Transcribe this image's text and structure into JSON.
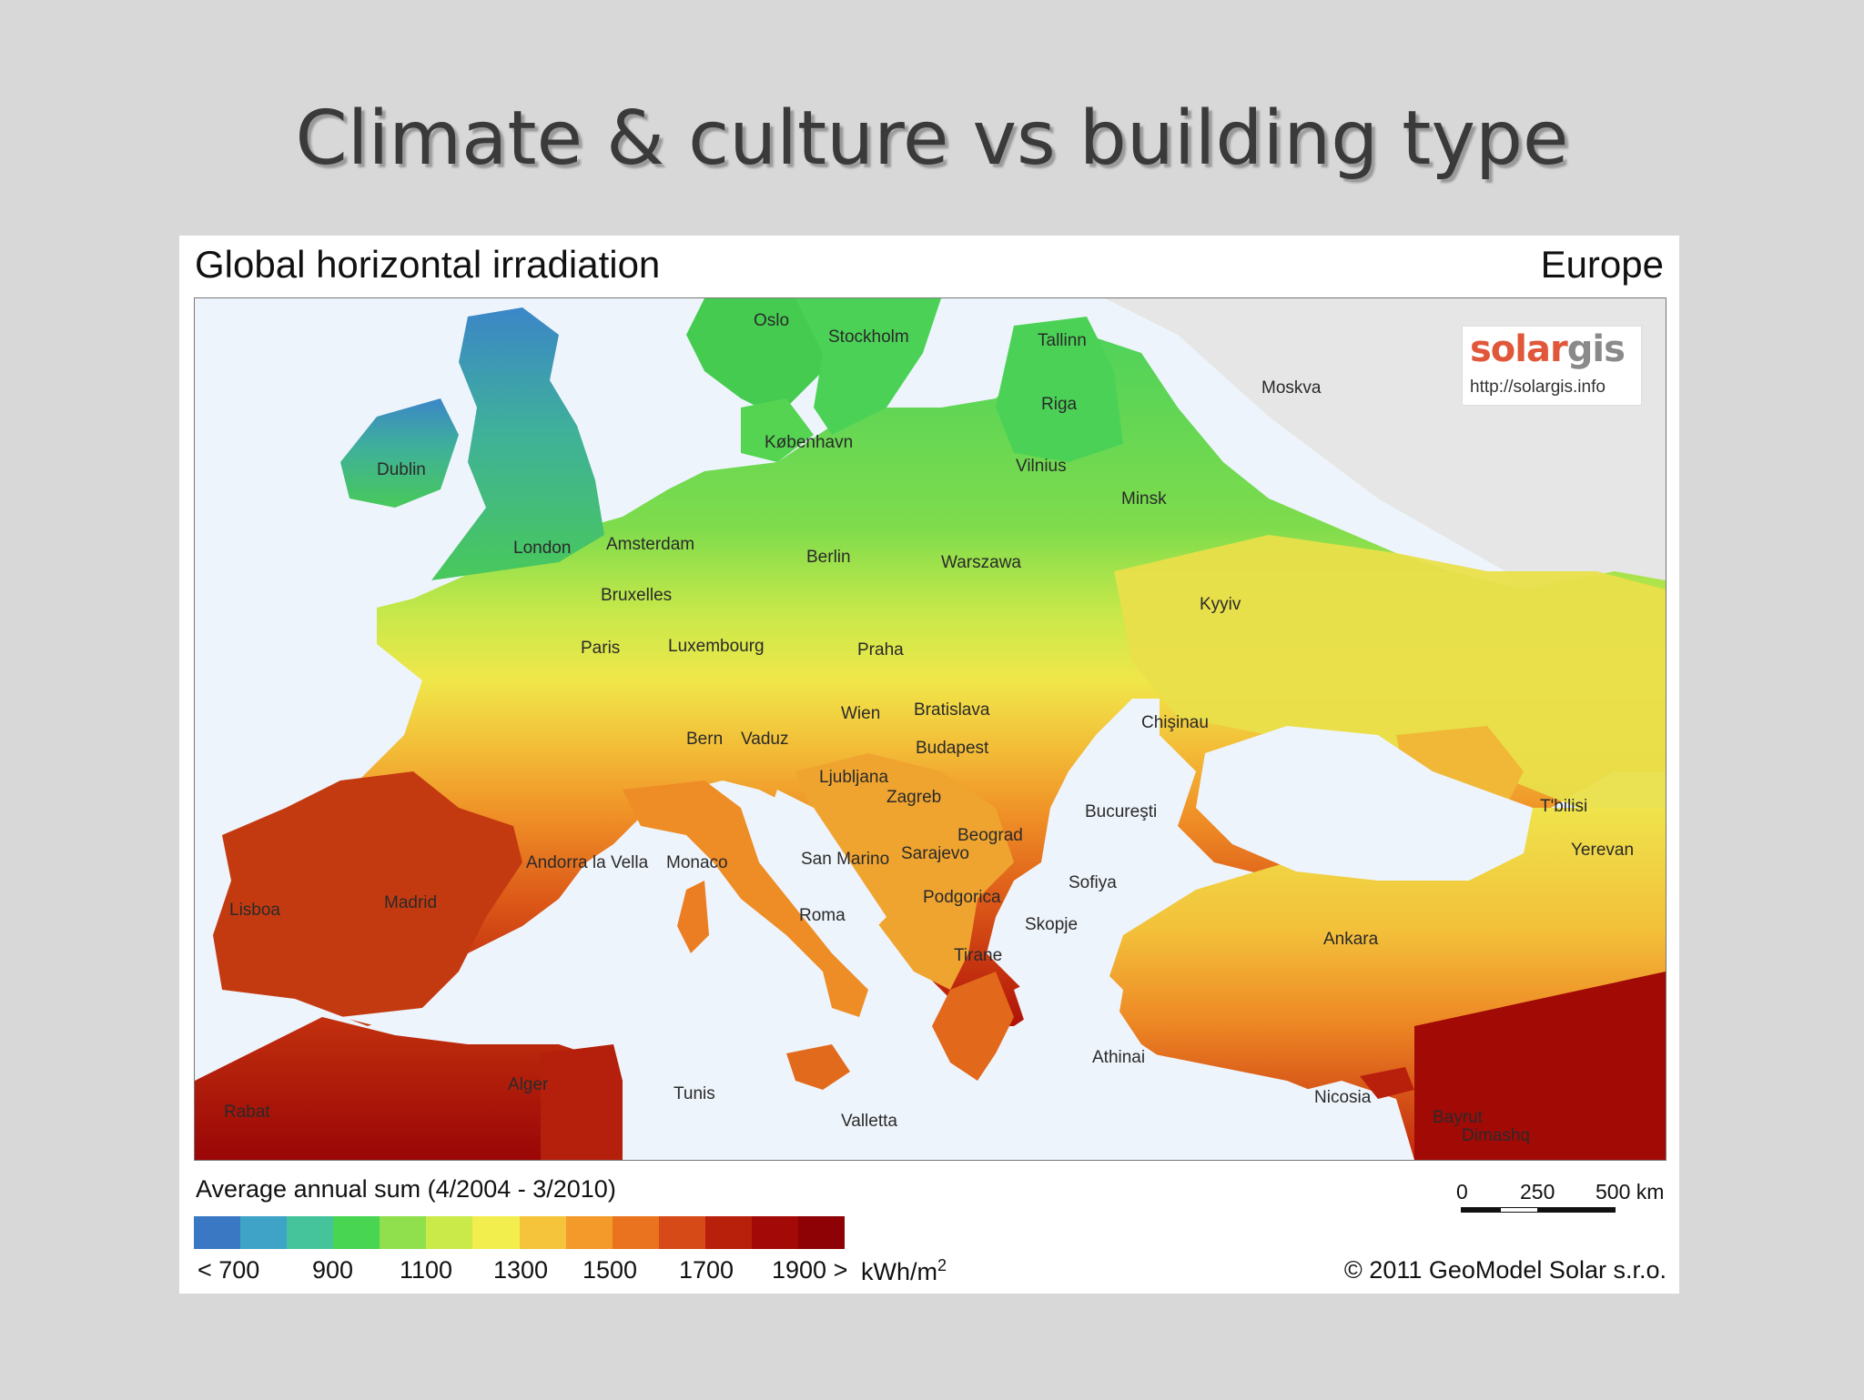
{
  "slide": {
    "title": "Climate & culture vs building type"
  },
  "map": {
    "title": "Global horizontal irradiation",
    "region": "Europe",
    "logo": {
      "part1": "solar",
      "part2": "gis",
      "url": "http://solargis.info"
    },
    "cities": [
      "Oslo",
      "Stockholm",
      "Tallinn",
      "Moskva",
      "Riga",
      "København",
      "Vilnius",
      "Dublin",
      "Minsk",
      "London",
      "Amsterdam",
      "Berlin",
      "Warszawa",
      "Bruxelles",
      "Kyyiv",
      "Paris",
      "Luxembourg",
      "Praha",
      "Wien",
      "Bratislava",
      "Chişinau",
      "Bern",
      "Vaduz",
      "Budapest",
      "Ljubljana",
      "Zagreb",
      "T'bilisi",
      "Bucureşti",
      "Andorra la Vella",
      "Monaco",
      "San Marino",
      "Sarajevo",
      "Beograd",
      "Yerevan",
      "Lisboa",
      "Madrid",
      "Sofiya",
      "Podgorica",
      "Roma",
      "Skopje",
      "Ankara",
      "Tirane",
      "Athinai",
      "Alger",
      "Tunis",
      "Nicosia",
      "Rabat",
      "Valletta",
      "Bayrut",
      "Dimashq"
    ]
  },
  "legend": {
    "title": "Average annual sum (4/2004 - 3/2010)",
    "colors": [
      "#3b78c4",
      "#3fa3c8",
      "#45c39a",
      "#48d552",
      "#8fe04c",
      "#c9ea48",
      "#f2ee4e",
      "#f6c43a",
      "#f39a2a",
      "#e9731f",
      "#d54a16",
      "#b8200c",
      "#a30a07",
      "#8e0205"
    ],
    "labels": [
      "< 700",
      "900",
      "1100",
      "1300",
      "1500",
      "1700",
      "1900 >"
    ],
    "unit": "kWh/m",
    "unit_sup": "2"
  },
  "scale": {
    "labels": [
      "0",
      "250",
      "500 km"
    ]
  },
  "copyright": "© 2011 GeoModel Solar s.r.o."
}
